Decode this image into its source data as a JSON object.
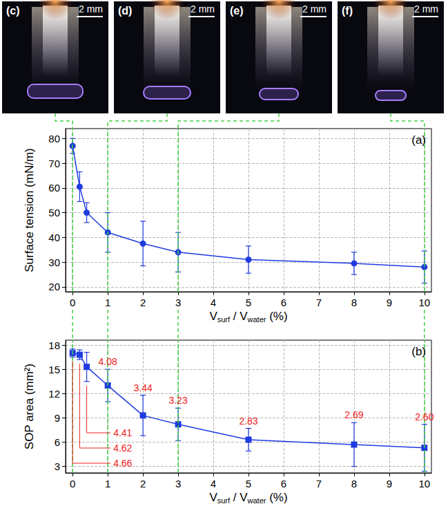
{
  "photos": [
    {
      "label": "(c)",
      "scale_bar": "2 mm",
      "x": 0
    },
    {
      "label": "(d)",
      "scale_bar": "2 mm",
      "x": 1
    },
    {
      "label": "(e)",
      "scale_bar": "2 mm",
      "x": 3
    },
    {
      "label": "(f)",
      "scale_bar": "2 mm",
      "x": 10
    }
  ],
  "chart_data": [
    {
      "type": "line",
      "panel_label": "(a)",
      "xlabel": "Vsurf / Vwater (%)",
      "ylabel": "Surface tension (mN/m)",
      "x": [
        0,
        0.2,
        0.4,
        1,
        2,
        3,
        5,
        8,
        10
      ],
      "values": [
        77,
        60.5,
        50,
        42,
        37.5,
        34,
        31,
        29.5,
        28
      ],
      "errors": [
        3,
        6,
        4,
        8,
        9,
        8,
        5.5,
        4.5,
        6.5
      ],
      "color": "#1f3be0",
      "marker": "circle",
      "xlim": [
        -0.2,
        10.2
      ],
      "xticks": [
        0,
        1,
        2,
        3,
        4,
        5,
        6,
        7,
        8,
        9,
        10
      ],
      "ylim": [
        18,
        84
      ],
      "yticks": [
        20,
        30,
        40,
        50,
        60,
        70,
        80
      ],
      "grid": true
    },
    {
      "type": "line",
      "panel_label": "(b)",
      "xlabel": "Vsurf / Vwater (%)",
      "ylabel": "SOP area (mm²)",
      "x": [
        0,
        0.2,
        0.4,
        1,
        2,
        3,
        5,
        8,
        10
      ],
      "values": [
        17,
        16.8,
        15.3,
        13,
        9.3,
        8.2,
        6.3,
        5.7,
        5.3
      ],
      "errors": [
        0.5,
        0.6,
        1.8,
        2,
        2.5,
        2,
        1.4,
        2.7,
        2.9
      ],
      "point_labels": [
        "4.66",
        "4.62",
        "4.41",
        "4.08",
        "3.44",
        "3.23",
        "2.83",
        "2.69",
        "2.60"
      ],
      "color": "#1f3be0",
      "marker": "square",
      "xlim": [
        -0.2,
        10.2
      ],
      "xticks": [
        0,
        1,
        2,
        3,
        4,
        5,
        6,
        7,
        8,
        9,
        10
      ],
      "ylim": [
        2.2,
        18.6
      ],
      "yticks": [
        3,
        6,
        9,
        12,
        15,
        18
      ],
      "grid": true
    }
  ]
}
